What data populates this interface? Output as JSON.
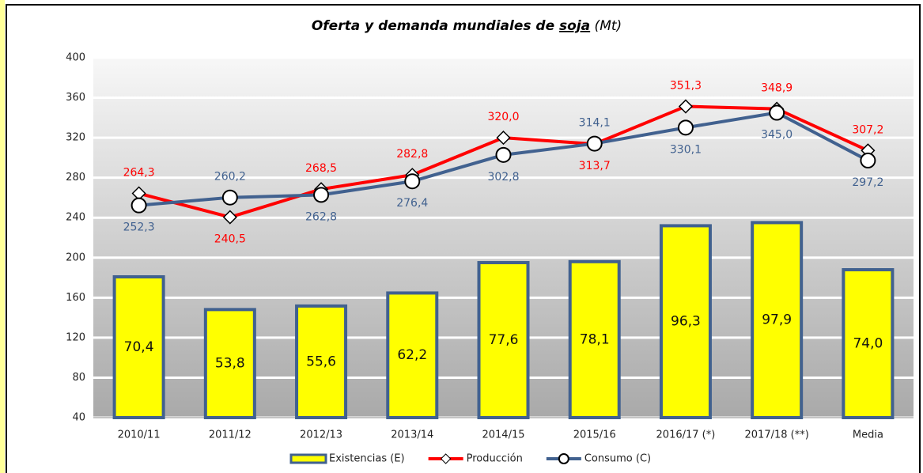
{
  "chart_data": {
    "type": "bar_line",
    "title": [
      "Oferta y demanda mundiales de ",
      "soja",
      " (Mt)"
    ],
    "categories": [
      "2010/11",
      "2011/12",
      "2012/13",
      "2013/14",
      "2014/15",
      "2015/16",
      "2016/17 (*)",
      "2017/18 (**)",
      "Media"
    ],
    "ylim": [
      40,
      400
    ],
    "yticks": [
      40,
      80,
      120,
      160,
      200,
      240,
      280,
      320,
      360,
      400
    ],
    "y2lim": [
      -1,
      181.5
    ],
    "grid": true,
    "series": [
      {
        "name": "Existencias (E)",
        "type": "bar",
        "axis": "y2",
        "color": "#ffff00",
        "edge": "#41618f",
        "values": [
          70.4,
          53.8,
          55.6,
          62.2,
          77.6,
          78.1,
          96.3,
          97.9,
          74.0
        ],
        "value_labels": [
          "70,4",
          "53,8",
          "55,6",
          "62,2",
          "77,6",
          "78,1",
          "96,3",
          "97,9",
          "74,0"
        ]
      },
      {
        "name": "Producción",
        "type": "line",
        "color": "#ff0000",
        "marker": "diamond",
        "values": [
          264.3,
          240.5,
          268.5,
          282.8,
          320.0,
          313.7,
          351.3,
          348.9,
          307.2
        ],
        "value_labels": [
          "264,3",
          "240,5",
          "268,5",
          "282,8",
          "320,0",
          "313,7",
          "351,3",
          "348,9",
          "307,2"
        ]
      },
      {
        "name": "Consumo (C)",
        "type": "line",
        "color": "#41618f",
        "marker": "circle",
        "values": [
          252.3,
          260.2,
          262.8,
          276.4,
          302.8,
          314.1,
          330.1,
          345.0,
          297.2
        ],
        "value_labels": [
          "252,3",
          "260,2",
          "262,8",
          "276,4",
          "302,8",
          "314,1",
          "330,1",
          "345,0",
          "297,2"
        ]
      }
    ]
  }
}
